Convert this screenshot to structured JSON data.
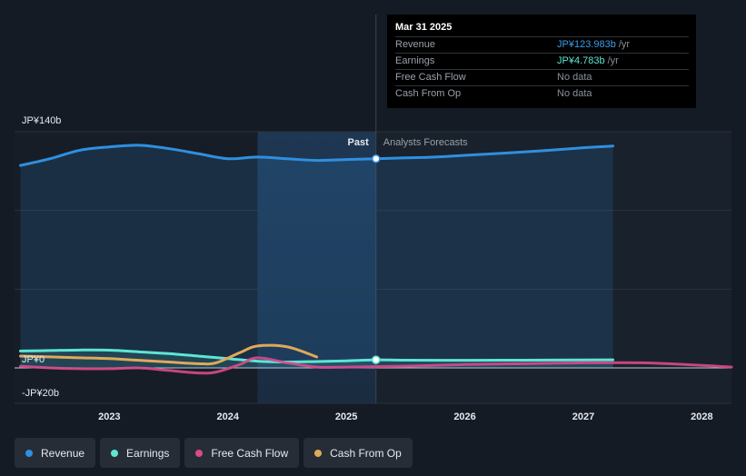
{
  "tooltip": {
    "date": "Mar 31 2025",
    "rows": [
      {
        "label": "Revenue",
        "value": "JP¥123.983b",
        "unit": "/yr"
      },
      {
        "label": "Earnings",
        "value": "JP¥4.783b",
        "unit": "/yr"
      },
      {
        "label": "Free Cash Flow",
        "value": "No data",
        "unit": ""
      },
      {
        "label": "Cash From Op",
        "value": "No data",
        "unit": ""
      }
    ]
  },
  "legend": [
    {
      "label": "Revenue",
      "color": "#2f8fe0"
    },
    {
      "label": "Earnings",
      "color": "#5ee5d4"
    },
    {
      "label": "Free Cash Flow",
      "color": "#d84a8b"
    },
    {
      "label": "Cash From Op",
      "color": "#e0a85a"
    }
  ],
  "chart_data": {
    "type": "line",
    "y_top_label": "JP¥140b",
    "y_zero_label": "JP¥0",
    "y_bottom_label": "-JP¥20b",
    "ylim": [
      -20,
      140
    ],
    "xlim": [
      2022.2,
      2028.25
    ],
    "x_ticks": [
      "2023",
      "2024",
      "2025",
      "2026",
      "2027",
      "2028"
    ],
    "past_label": "Past",
    "forecast_label": "Analysts Forecasts",
    "divider_x": 2025.25,
    "highlight_range": [
      2024.25,
      2025.25
    ],
    "series": [
      {
        "name": "Revenue",
        "color": "#2f8fe0",
        "area": true,
        "x": [
          2022.25,
          2022.5,
          2022.75,
          2023.0,
          2023.25,
          2023.5,
          2023.75,
          2024.0,
          2024.25,
          2024.5,
          2024.75,
          2025.0,
          2025.25,
          2025.5,
          2025.75,
          2026.0,
          2026.5,
          2027.0,
          2027.25
        ],
        "y": [
          120,
          124,
          129,
          131,
          132,
          130,
          127,
          124,
          125,
          124,
          123,
          123.5,
          124,
          124.5,
          125,
          126,
          128,
          130.5,
          131.5
        ]
      },
      {
        "name": "Earnings",
        "color": "#5ee5d4",
        "area": true,
        "x": [
          2022.25,
          2022.5,
          2022.75,
          2023.0,
          2023.25,
          2023.5,
          2023.75,
          2024.0,
          2024.25,
          2024.5,
          2024.75,
          2025.0,
          2025.25,
          2025.5,
          2026.0,
          2026.5,
          2027.0,
          2027.25
        ],
        "y": [
          10,
          10.3,
          10.6,
          10.5,
          9.5,
          8.5,
          7,
          5.5,
          4,
          3.5,
          3.8,
          4.2,
          4.8,
          4.6,
          4.5,
          4.6,
          4.7,
          4.8
        ]
      },
      {
        "name": "Free Cash Flow",
        "color": "#d84a8b",
        "area": false,
        "x": [
          2022.25,
          2022.5,
          2022.75,
          2023.0,
          2023.25,
          2023.5,
          2023.75,
          2023.9,
          2024.1,
          2024.25,
          2024.5,
          2024.75,
          2025.0,
          2025.5,
          2026.0,
          2026.5,
          2027.0,
          2027.5,
          2028.0,
          2028.25
        ],
        "y": [
          1,
          0,
          -0.5,
          -0.5,
          0,
          -1.5,
          -3,
          -2.5,
          2,
          6,
          3,
          0.5,
          0.5,
          1,
          2,
          2.5,
          3,
          3,
          1.5,
          0.5
        ]
      },
      {
        "name": "Cash From Op",
        "color": "#e0a85a",
        "area": false,
        "x": [
          2022.25,
          2022.5,
          2022.75,
          2023.0,
          2023.25,
          2023.5,
          2023.75,
          2023.9,
          2024.1,
          2024.25,
          2024.5,
          2024.75
        ],
        "y": [
          7,
          6.5,
          6,
          5.5,
          4.5,
          3.5,
          2.5,
          3,
          9,
          13,
          12.5,
          6.5
        ]
      }
    ]
  }
}
